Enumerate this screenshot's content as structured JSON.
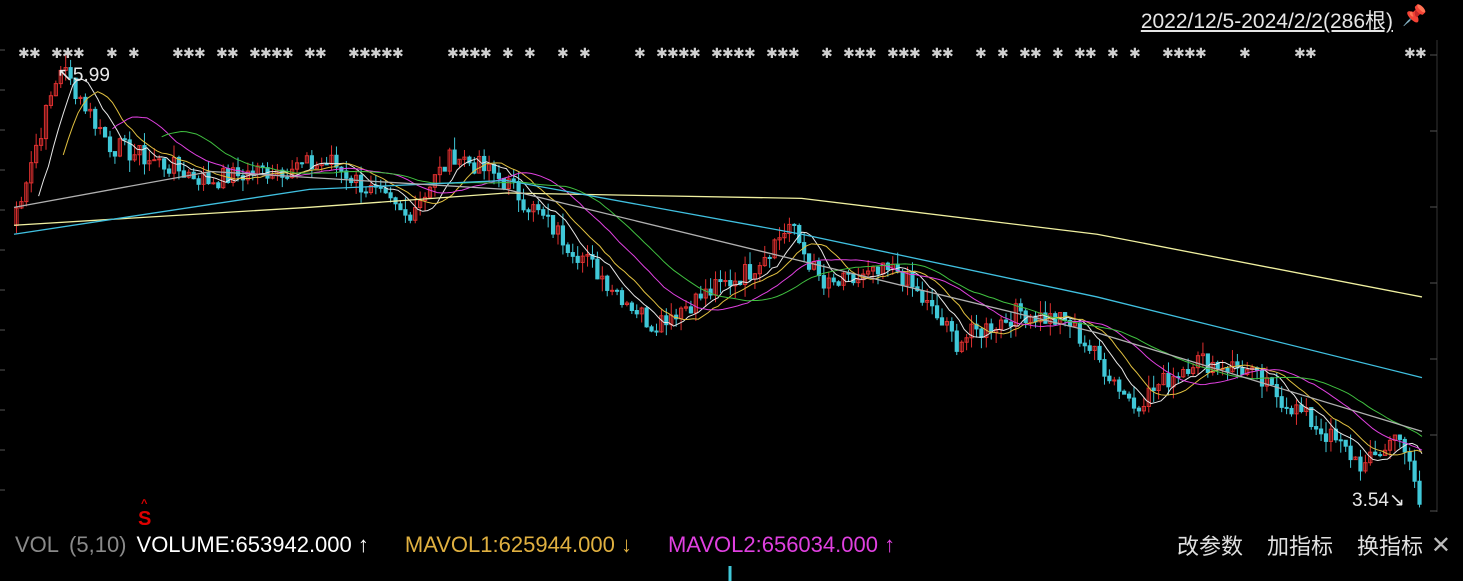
{
  "header": {
    "range_label": "2022/12/5-2024/2/2(286根)",
    "pin_icon": "pin-icon"
  },
  "annotations": {
    "high_label": "↖5.99",
    "low_label": "3.54↘",
    "signal_label": "S"
  },
  "volume_bar": {
    "name": "VOL",
    "params": "(5,10)",
    "volume_text": "VOLUME:653942.000 ↑",
    "mavol1_text": "MAVOL1:625944.000 ↓",
    "mavol2_text": "MAVOL2:656034.000 ↑",
    "actions": [
      "改参数",
      "加指标",
      "换指标"
    ],
    "close_icon": "close-icon"
  },
  "colors": {
    "background": "#000000",
    "up": "#e03030",
    "down": "#40c8d8",
    "ma_white": "#e8e8e8",
    "ma_yellow": "#e0c040",
    "ma_magenta": "#e040e0",
    "ma_green": "#40c040",
    "ma_grey": "#b0b0b0",
    "ma_cyan": "#40c0e0",
    "ma_longyellow": "#f0f0a0"
  },
  "chart_data": {
    "type": "line",
    "title": "",
    "period_count": 286,
    "price_high": 5.99,
    "price_low": 3.54,
    "ylim": [
      3.5,
      6.05
    ],
    "key_points": [
      {
        "x": 0,
        "y": 5.1
      },
      {
        "x": 10,
        "y": 5.99
      },
      {
        "x": 20,
        "y": 5.55
      },
      {
        "x": 40,
        "y": 5.35
      },
      {
        "x": 50,
        "y": 5.4
      },
      {
        "x": 65,
        "y": 5.45
      },
      {
        "x": 80,
        "y": 5.15
      },
      {
        "x": 90,
        "y": 5.5
      },
      {
        "x": 100,
        "y": 5.35
      },
      {
        "x": 115,
        "y": 4.95
      },
      {
        "x": 130,
        "y": 4.55
      },
      {
        "x": 150,
        "y": 4.85
      },
      {
        "x": 158,
        "y": 5.1
      },
      {
        "x": 165,
        "y": 4.75
      },
      {
        "x": 180,
        "y": 4.85
      },
      {
        "x": 192,
        "y": 4.45
      },
      {
        "x": 205,
        "y": 4.62
      },
      {
        "x": 215,
        "y": 4.55
      },
      {
        "x": 228,
        "y": 4.1
      },
      {
        "x": 240,
        "y": 4.35
      },
      {
        "x": 250,
        "y": 4.3
      },
      {
        "x": 262,
        "y": 4.05
      },
      {
        "x": 275,
        "y": 3.75
      },
      {
        "x": 282,
        "y": 3.95
      },
      {
        "x": 286,
        "y": 3.54
      }
    ],
    "moving_averages": [
      {
        "color_key": "ma_longyellow",
        "points": [
          [
            0,
            5.1
          ],
          [
            60,
            5.2
          ],
          [
            100,
            5.28
          ],
          [
            160,
            5.25
          ],
          [
            220,
            5.05
          ],
          [
            286,
            4.7
          ]
        ]
      },
      {
        "color_key": "ma_cyan",
        "points": [
          [
            0,
            5.05
          ],
          [
            60,
            5.3
          ],
          [
            100,
            5.35
          ],
          [
            160,
            5.05
          ],
          [
            220,
            4.7
          ],
          [
            286,
            4.25
          ]
        ]
      },
      {
        "color_key": "ma_grey",
        "points": [
          [
            0,
            5.2
          ],
          [
            40,
            5.4
          ],
          [
            100,
            5.3
          ],
          [
            160,
            4.9
          ],
          [
            220,
            4.5
          ],
          [
            286,
            3.95
          ]
        ]
      }
    ],
    "volume": {
      "volume": 653942.0,
      "mavol1": 625944.0,
      "mavol2": 656034.0
    }
  }
}
